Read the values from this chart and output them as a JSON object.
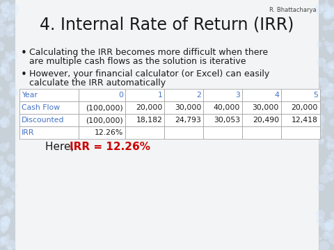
{
  "title": "4. Internal Rate of Return (IRR)",
  "author": "R. Bhattacharya",
  "bullet1_line1": "Calculating the IRR becomes more difficult when there",
  "bullet1_line2": "are multiple cash flows as the solution is iterative",
  "bullet2_line1": "However, your financial calculator (or Excel) can easily",
  "bullet2_line2": "calculate the IRR automatically",
  "table_headers": [
    "Year",
    "0",
    "1",
    "2",
    "3",
    "4",
    "5"
  ],
  "row1_label": "Cash Flow",
  "row1_data": [
    "(100,000)",
    "20,000",
    "30,000",
    "40,000",
    "30,000",
    "20,000"
  ],
  "row2_label": "Discounted",
  "row2_data": [
    "(100,000)",
    "18,182",
    "24,793",
    "30,053",
    "20,490",
    "12,418"
  ],
  "row3_label": "IRR",
  "row3_data": [
    "12.26%",
    "",
    "",
    "",
    "",
    ""
  ],
  "conclusion_prefix": "Here, ",
  "conclusion_highlight": "IRR = 12.26%",
  "title_color": "#1a1a1a",
  "header_color": "#4472C4",
  "table_text_color": "#1a1a1a",
  "highlight_color": "#CC0000",
  "bg_color": "#EEEEF0",
  "table_bg": "#FFFFFF",
  "table_border": "#999999",
  "title_fontsize": 17,
  "body_fontsize": 9,
  "table_fontsize": 7.8,
  "conclusion_fontsize": 11,
  "author_fontsize": 6
}
